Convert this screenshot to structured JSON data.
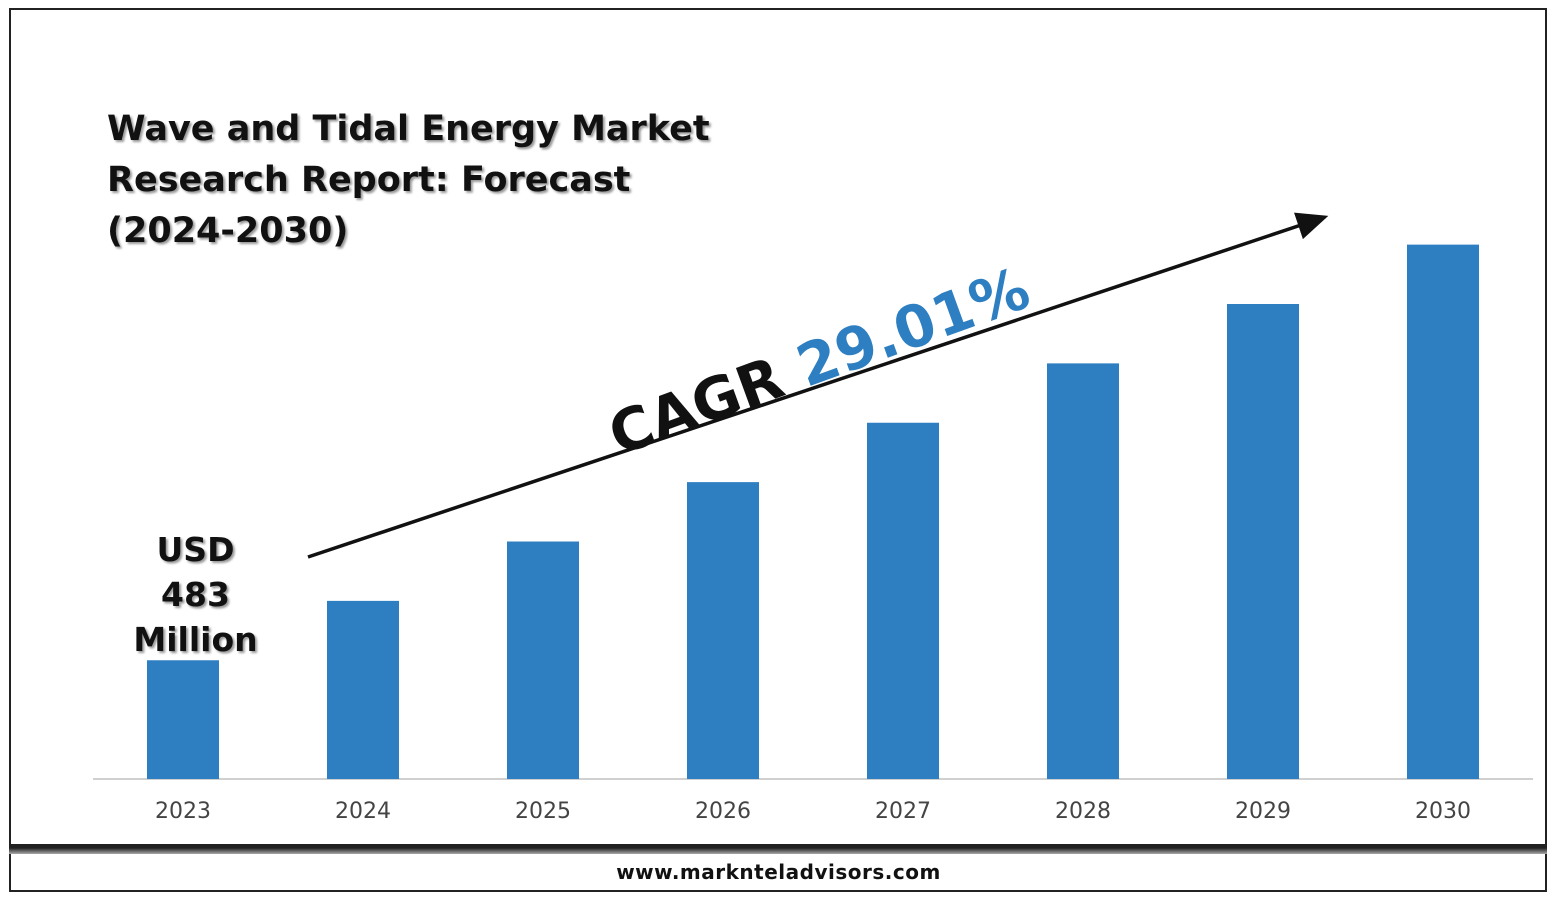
{
  "title": {
    "line1": "Wave and Tidal Energy Market",
    "line2": "Research Report: Forecast",
    "line3": "(2024-2030)"
  },
  "annotation": {
    "start_value_lines": [
      "USD",
      "483",
      "Million"
    ],
    "cagr_label": "CAGR",
    "cagr_value": "29.01%"
  },
  "footer": {
    "website": "www.marknteladvisors.com"
  },
  "colors": {
    "bar": "#2e7fc1",
    "cagr_value": "#2e7fc1",
    "text": "#111111",
    "axis": "#d0d0d0"
  },
  "chart_data": {
    "type": "bar",
    "categories": [
      "2023",
      "2024",
      "2025",
      "2026",
      "2027",
      "2028",
      "2029",
      "2030"
    ],
    "values": [
      1,
      1.5,
      2,
      2.5,
      3,
      3.5,
      4,
      4.5
    ],
    "ylim": [
      0,
      4.8
    ],
    "grid": false,
    "axis_visible": false,
    "trend_arrow": true
  }
}
